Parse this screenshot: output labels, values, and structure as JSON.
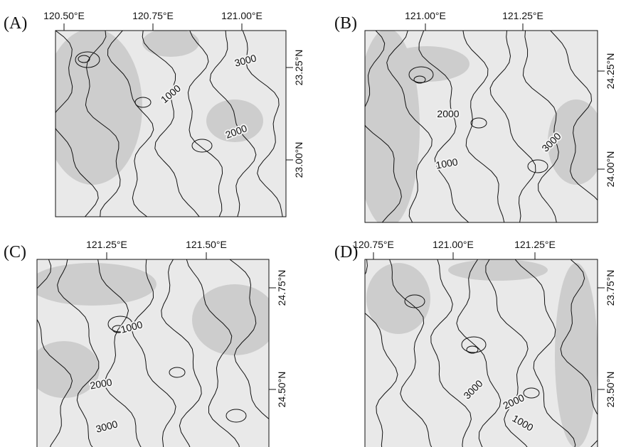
{
  "panels": [
    {
      "label": "(A)",
      "lon_ticks": [
        "120.50°E",
        "120.75°E",
        "121.00°E"
      ],
      "lat_ticks": [
        "23.25°N",
        "23.00°N"
      ],
      "contour_labels": [
        "3000",
        "1000",
        "2000"
      ]
    },
    {
      "label": "(B)",
      "lon_ticks": [
        "121.00°E",
        "121.25°E"
      ],
      "lat_ticks": [
        "24.25°N",
        "24.00°N"
      ],
      "contour_labels": [
        "2000",
        "3000",
        "1000"
      ]
    },
    {
      "label": "(C)",
      "lon_ticks": [
        "121.25°E",
        "121.50°E"
      ],
      "lat_ticks": [
        "24.75°N",
        "24.50°N"
      ],
      "contour_labels": [
        "1000",
        "2000",
        "3000"
      ]
    },
    {
      "label": "(D)",
      "lon_ticks": [
        "120.75°E",
        "121.00°E",
        "121.25°E"
      ],
      "lat_ticks": [
        "23.75°N",
        "23.50°N"
      ],
      "contour_labels": [
        "3000",
        "2000",
        "1000"
      ]
    }
  ]
}
